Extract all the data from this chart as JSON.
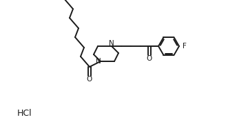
{
  "background_color": "#ffffff",
  "line_color": "#1a1a1a",
  "line_width": 1.4,
  "hcl_label": "HCl",
  "figsize": [
    3.31,
    1.93
  ],
  "dpi": 100,
  "xlim": [
    0,
    33.1
  ],
  "ylim": [
    0,
    19.3
  ]
}
